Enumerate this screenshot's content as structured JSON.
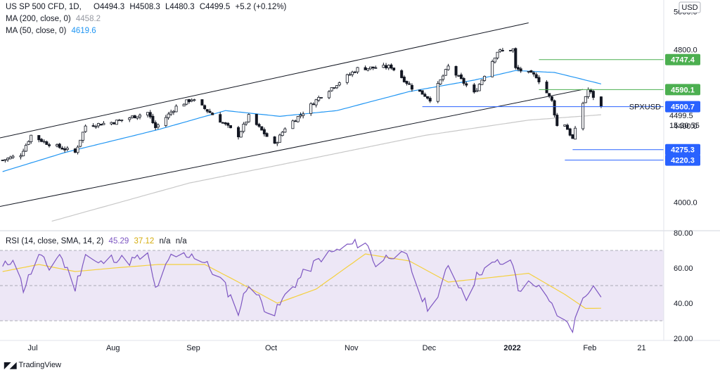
{
  "header": {
    "symbol": "US SP 500 CFD, 1D,",
    "open": "O4494.3",
    "high": "H4508.3",
    "low": "L4480.3",
    "close": "C4499.5",
    "change": "+5.2 (+0.12%)",
    "currency": "USD"
  },
  "indicators": {
    "ma200": {
      "label": "MA (200, close, 0)",
      "value": "4458.2"
    },
    "ma50": {
      "label": "MA (50, close, 0)",
      "value": "4619.6"
    },
    "rsi": {
      "label": "RSI (14, close, SMA, 14, 2)",
      "value": "45.29",
      "sma_value": "37.12",
      "na1": "n/a",
      "na2": "n/a"
    }
  },
  "branding": {
    "logo_text": "TradingView"
  },
  "colors": {
    "candle": "#131722",
    "ma50": "#2196f3",
    "ma200": "#c8c8c8",
    "channel": "#131722",
    "green_level": "#4caf50",
    "blue_level": "#2962ff",
    "rsi_line": "#7e57c2",
    "rsi_sma": "#f4d03f",
    "rsi_band": "#ede7f6"
  },
  "chart_data": {
    "type": "candlestick",
    "symbol": "SPXUSD",
    "price_axis": {
      "ticks": [
        "5000.0",
        "4800.0",
        "4400.0",
        "4000.0"
      ],
      "ylim": [
        3850,
        5060
      ]
    },
    "time_axis": {
      "labels": [
        "Jul",
        "Aug",
        "Sep",
        "Oct",
        "Nov",
        "Dec",
        "2022",
        "Feb",
        "21"
      ]
    },
    "close_series_anchors": [
      [
        "2021-06-21",
        4220
      ],
      [
        "2021-06-28",
        4250
      ],
      [
        "2021-07-02",
        4350
      ],
      [
        "2021-07-08",
        4310
      ],
      [
        "2021-07-19",
        4260
      ],
      [
        "2021-07-23",
        4400
      ],
      [
        "2021-08-03",
        4420
      ],
      [
        "2021-08-16",
        4470
      ],
      [
        "2021-08-19",
        4390
      ],
      [
        "2021-08-27",
        4500
      ],
      [
        "2021-09-02",
        4540
      ],
      [
        "2021-09-10",
        4460
      ],
      [
        "2021-09-20",
        4350
      ],
      [
        "2021-09-24",
        4450
      ],
      [
        "2021-10-04",
        4300
      ],
      [
        "2021-10-08",
        4390
      ],
      [
        "2021-10-15",
        4470
      ],
      [
        "2021-10-22",
        4560
      ],
      [
        "2021-11-05",
        4700
      ],
      [
        "2021-11-18",
        4710
      ],
      [
        "2021-11-26",
        4600
      ],
      [
        "2021-11-30",
        4570
      ],
      [
        "2021-12-03",
        4540
      ],
      [
        "2021-12-10",
        4710
      ],
      [
        "2021-12-20",
        4570
      ],
      [
        "2021-12-29",
        4790
      ],
      [
        "2022-01-04",
        4800
      ],
      [
        "2022-01-05",
        4700
      ],
      [
        "2022-01-13",
        4660
      ],
      [
        "2022-01-19",
        4530
      ],
      [
        "2022-01-21",
        4400
      ],
      [
        "2022-01-24",
        4410
      ],
      [
        "2022-01-27",
        4330
      ],
      [
        "2022-01-31",
        4520
      ],
      [
        "2022-02-02",
        4590
      ],
      [
        "2022-02-07",
        4499.5
      ]
    ],
    "ma50_anchors": [
      [
        "2021-06-21",
        4160
      ],
      [
        "2021-07-15",
        4260
      ],
      [
        "2021-08-20",
        4380
      ],
      [
        "2021-09-15",
        4480
      ],
      [
        "2021-10-06",
        4450
      ],
      [
        "2021-10-28",
        4480
      ],
      [
        "2021-11-25",
        4580
      ],
      [
        "2021-12-20",
        4640
      ],
      [
        "2022-01-05",
        4690
      ],
      [
        "2022-01-20",
        4680
      ],
      [
        "2022-02-07",
        4620
      ]
    ],
    "ma200_anchors": [
      [
        "2021-07-10",
        3900
      ],
      [
        "2021-09-01",
        4100
      ],
      [
        "2021-10-15",
        4220
      ],
      [
        "2021-12-01",
        4350
      ],
      [
        "2022-01-10",
        4430
      ],
      [
        "2022-02-07",
        4458.2
      ]
    ],
    "channel_upper": [
      [
        "2021-06-21",
        4340
      ],
      [
        "2022-01-10",
        4940
      ]
    ],
    "channel_lower": [
      [
        "2021-06-21",
        3980
      ],
      [
        "2022-01-27",
        4580
      ]
    ],
    "horizontal_levels": [
      {
        "value": 4747.4,
        "label": "4747.4",
        "from": "2022-01-14",
        "color": "green"
      },
      {
        "value": 4590.1,
        "label": "4590.1",
        "from": "2022-01-14",
        "color": "green"
      },
      {
        "value": 4500.7,
        "label": "4500.7",
        "from": "2021-11-30",
        "color": "blue",
        "tag": "SPXUSD"
      },
      {
        "value": 4275.3,
        "label": "4275.3",
        "from": "2022-01-27",
        "color": "blue"
      },
      {
        "value": 4220.3,
        "label": "4220.3",
        "from": "2022-01-24",
        "color": "blue"
      }
    ],
    "current_price": {
      "label": "4499.5",
      "countdown": "15:30:55"
    },
    "rsi": {
      "ticks": [
        "80.00",
        "60.00",
        "40.00",
        "20.00"
      ],
      "ylim": [
        20,
        80
      ],
      "band": [
        30,
        70
      ],
      "mid": 50,
      "rsi_anchors": [
        [
          "2021-06-21",
          60
        ],
        [
          "2021-06-25",
          66
        ],
        [
          "2021-06-29",
          48
        ],
        [
          "2021-07-05",
          67
        ],
        [
          "2021-07-09",
          60
        ],
        [
          "2021-07-13",
          68
        ],
        [
          "2021-07-19",
          49
        ],
        [
          "2021-07-23",
          68
        ],
        [
          "2021-07-28",
          62
        ],
        [
          "2021-08-03",
          66
        ],
        [
          "2021-08-09",
          64
        ],
        [
          "2021-08-16",
          67
        ],
        [
          "2021-08-19",
          48
        ],
        [
          "2021-08-25",
          66
        ],
        [
          "2021-09-02",
          68
        ],
        [
          "2021-09-07",
          63
        ],
        [
          "2021-09-14",
          52
        ],
        [
          "2021-09-20",
          35
        ],
        [
          "2021-09-24",
          52
        ],
        [
          "2021-09-30",
          38
        ],
        [
          "2021-10-04",
          34
        ],
        [
          "2021-10-08",
          44
        ],
        [
          "2021-10-14",
          55
        ],
        [
          "2021-10-22",
          66
        ],
        [
          "2021-11-02",
          73
        ],
        [
          "2021-11-08",
          75
        ],
        [
          "2021-11-12",
          62
        ],
        [
          "2021-11-18",
          68
        ],
        [
          "2021-11-24",
          66
        ],
        [
          "2021-11-30",
          42
        ],
        [
          "2021-12-03",
          36
        ],
        [
          "2021-12-10",
          60
        ],
        [
          "2021-12-17",
          44
        ],
        [
          "2021-12-22",
          58
        ],
        [
          "2021-12-29",
          63
        ],
        [
          "2022-01-04",
          62
        ],
        [
          "2022-01-06",
          48
        ],
        [
          "2022-01-12",
          52
        ],
        [
          "2022-01-18",
          40
        ],
        [
          "2022-01-24",
          29
        ],
        [
          "2022-01-27",
          26
        ],
        [
          "2022-01-31",
          43
        ],
        [
          "2022-02-03",
          50
        ],
        [
          "2022-02-07",
          45.29
        ]
      ],
      "sma_anchors": [
        [
          "2021-06-21",
          58
        ],
        [
          "2021-07-05",
          62
        ],
        [
          "2021-07-19",
          58
        ],
        [
          "2021-08-03",
          60
        ],
        [
          "2021-08-20",
          62
        ],
        [
          "2021-09-07",
          62
        ],
        [
          "2021-09-20",
          52
        ],
        [
          "2021-10-05",
          40
        ],
        [
          "2021-10-20",
          48
        ],
        [
          "2021-11-08",
          68
        ],
        [
          "2021-11-25",
          64
        ],
        [
          "2021-12-10",
          52
        ],
        [
          "2021-12-29",
          55
        ],
        [
          "2022-01-10",
          57
        ],
        [
          "2022-01-24",
          45
        ],
        [
          "2022-02-01",
          37
        ],
        [
          "2022-02-07",
          37.12
        ]
      ]
    }
  }
}
